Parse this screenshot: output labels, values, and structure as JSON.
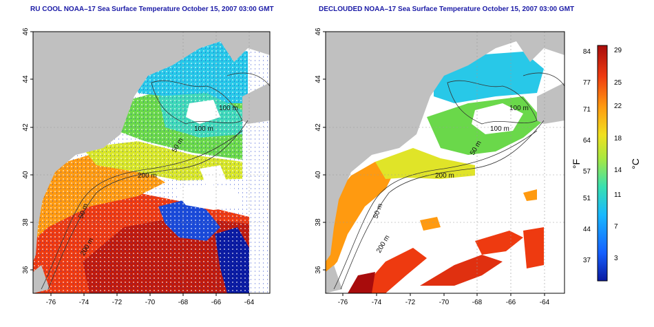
{
  "left_panel": {
    "title": "RU COOL NOAA–17 Sea Surface Temperature October 15, 2007 03:00 GMT",
    "yticks": [
      "46",
      "44",
      "42",
      "40",
      "38",
      "36"
    ],
    "xticks": [
      "-76",
      "-74",
      "-72",
      "-70",
      "-68",
      "-66",
      "-64"
    ],
    "contour_labels": [
      "100 m",
      "100 m",
      "50 m",
      "200 m",
      "50 m",
      "200 m"
    ]
  },
  "right_panel": {
    "title": "DECLOUDED NOAA–17 Sea Surface Temperature October 15, 2007 03:00 GMT",
    "yticks": [
      "46",
      "44",
      "42",
      "40",
      "38",
      "36"
    ],
    "xticks": [
      "-76",
      "-74",
      "-72",
      "-70",
      "-68",
      "-66",
      "-64"
    ],
    "contour_labels": [
      "100 m",
      "100 m",
      "50 m",
      "200 m",
      "50 m",
      "200 m"
    ]
  },
  "colorbar": {
    "left_unit": "°F",
    "right_unit": "°C",
    "f_ticks": [
      "84",
      "77",
      "71",
      "64",
      "57",
      "51",
      "44",
      "37"
    ],
    "c_ticks": [
      "29",
      "25",
      "22",
      "18",
      "14",
      "11",
      "7",
      "3"
    ],
    "colors": [
      "#0a1aa0",
      "#1560ff",
      "#18b8ff",
      "#38e0b0",
      "#a8e840",
      "#f0e020",
      "#ff9a10",
      "#ee3a10",
      "#a80c0c"
    ]
  },
  "map_colors": {
    "land": "#c0c0c0",
    "cloud": "#ffffff",
    "grid": "#9a9a9a"
  }
}
